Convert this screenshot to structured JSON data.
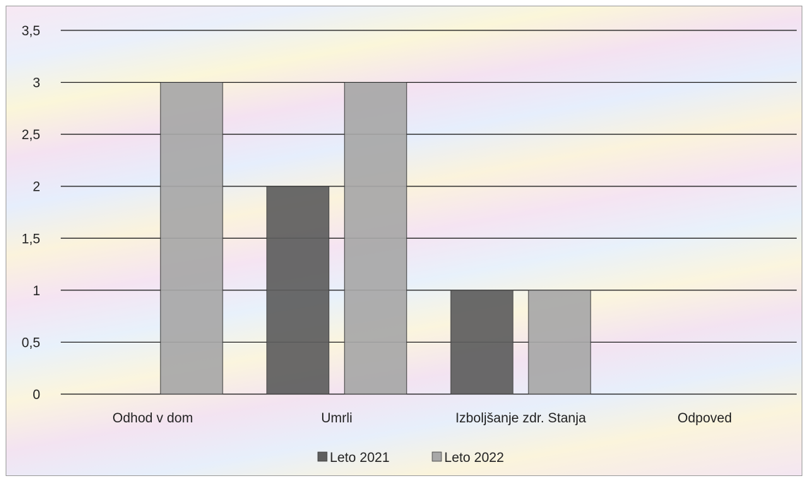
{
  "chart_data": {
    "type": "bar",
    "title": "",
    "xlabel": "",
    "ylabel": "",
    "categories": [
      "Odhod v dom",
      "Umrli",
      "Izboljšanje zdr. Stanja",
      "Odpoved"
    ],
    "series": [
      {
        "name": "Leto 2021",
        "values": [
          0,
          2,
          1,
          0
        ],
        "color": "#5e5e5e"
      },
      {
        "name": "Leto 2022",
        "values": [
          3,
          3,
          1,
          0
        ],
        "color": "#a8a8a8"
      }
    ],
    "ylim": [
      0,
      3.5
    ],
    "yticks": [
      "0",
      "0,5",
      "1",
      "1,5",
      "2",
      "2,5",
      "3",
      "3,5"
    ],
    "ytick_values": [
      0,
      0.5,
      1,
      1.5,
      2,
      2.5,
      3,
      3.5
    ],
    "grid": true,
    "legend_position": "bottom"
  }
}
